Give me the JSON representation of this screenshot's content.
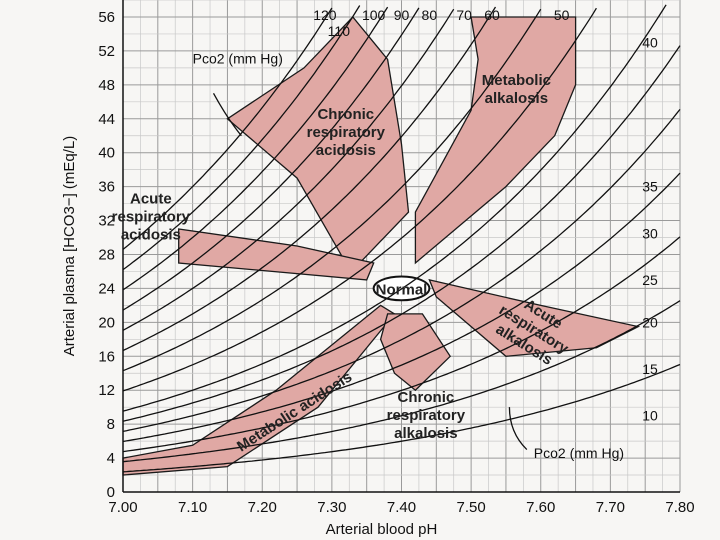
{
  "chart_data": {
    "type": "line",
    "title": "",
    "xlabel": "Arterial blood pH",
    "ylabel": "Arterial plasma [HCO3−] (mEq/L)",
    "xlim": [
      7.0,
      7.8
    ],
    "ylim": [
      0,
      58
    ],
    "x_ticks": [
      "7.00",
      "7.10",
      "7.20",
      "7.30",
      "7.40",
      "7.50",
      "7.60",
      "7.70",
      "7.80"
    ],
    "y_ticks": [
      "0",
      "4",
      "8",
      "12",
      "16",
      "20",
      "24",
      "28",
      "32",
      "36",
      "40",
      "44",
      "48",
      "52",
      "56"
    ],
    "grid": true,
    "isopleth_label_top": "Pco2 (mm Hg)",
    "isopleth_label_bottom": "Pco2 (mm Hg)",
    "isopleths_pco2_mmHg": [
      120,
      110,
      100,
      90,
      80,
      70,
      60,
      50,
      40,
      35,
      30,
      25,
      20,
      15,
      10
    ],
    "isopleth_labels_top": [
      {
        "text": "120",
        "pco2": 120
      },
      {
        "text": "110",
        "pco2": 110
      },
      {
        "text": "100",
        "pco2": 100
      },
      {
        "text": "90",
        "pco2": 90
      },
      {
        "text": "80",
        "pco2": 80
      },
      {
        "text": "70",
        "pco2": 70
      },
      {
        "text": "60",
        "pco2": 60
      },
      {
        "text": "50",
        "pco2": 50
      }
    ],
    "isopleth_labels_right": [
      {
        "text": "40",
        "pco2": 40
      },
      {
        "text": "35",
        "pco2": 35
      },
      {
        "text": "30",
        "pco2": 30
      },
      {
        "text": "25",
        "pco2": 25
      },
      {
        "text": "20",
        "pco2": 20
      },
      {
        "text": "15",
        "pco2": 15
      },
      {
        "text": "10",
        "pco2": 10
      }
    ],
    "regions": [
      {
        "name": "Normal",
        "label": "Normal",
        "ellipse": {
          "cx": 7.4,
          "cy": 24,
          "rx": 0.04,
          "ry": 1.4
        }
      },
      {
        "name": "Chronic respiratory acidosis",
        "label_lines": [
          "Chronic",
          "respiratory",
          "acidosis"
        ],
        "polygon": [
          [
            7.32,
            27
          ],
          [
            7.25,
            37
          ],
          [
            7.15,
            44
          ],
          [
            7.26,
            50
          ],
          [
            7.33,
            56
          ],
          [
            7.38,
            51
          ],
          [
            7.4,
            41
          ],
          [
            7.41,
            33
          ],
          [
            7.34,
            27
          ]
        ]
      },
      {
        "name": "Metabolic alkalosis",
        "label_lines": [
          "Metabolic",
          "alkalosis"
        ],
        "polygon": [
          [
            7.42,
            33
          ],
          [
            7.5,
            45
          ],
          [
            7.51,
            51
          ],
          [
            7.5,
            56
          ],
          [
            7.65,
            56
          ],
          [
            7.65,
            48
          ],
          [
            7.62,
            42
          ],
          [
            7.55,
            36
          ],
          [
            7.42,
            27
          ]
        ]
      },
      {
        "name": "Acute respiratory acidosis",
        "label_lines": [
          "Acute",
          "respiratory",
          "acidosis"
        ],
        "polygon": [
          [
            7.08,
            31
          ],
          [
            7.08,
            27
          ],
          [
            7.35,
            25
          ],
          [
            7.36,
            27
          ],
          [
            7.25,
            29
          ]
        ]
      },
      {
        "name": "Acute respiratory alkalosis",
        "label_lines": [
          "Acute",
          "respiratory",
          "alkalosis"
        ],
        "polygon": [
          [
            7.44,
            25
          ],
          [
            7.6,
            22
          ],
          [
            7.74,
            19.5
          ],
          [
            7.68,
            17
          ],
          [
            7.55,
            16
          ],
          [
            7.45,
            23
          ]
        ]
      },
      {
        "name": "Metabolic acidosis",
        "label_lines": [
          "Metabolic acidosis"
        ],
        "polygon": [
          [
            7.37,
            22
          ],
          [
            7.22,
            12
          ],
          [
            7.1,
            5.5
          ],
          [
            7.0,
            4
          ],
          [
            7.0,
            2
          ],
          [
            7.15,
            3
          ],
          [
            7.28,
            10
          ],
          [
            7.39,
            21
          ]
        ]
      },
      {
        "name": "Chronic respiratory alkalosis",
        "label_lines": [
          "Chronic",
          "respiratory",
          "alkalosis"
        ],
        "polygon": [
          [
            7.38,
            21
          ],
          [
            7.37,
            18
          ],
          [
            7.39,
            14
          ],
          [
            7.42,
            12
          ],
          [
            7.47,
            16
          ],
          [
            7.43,
            21
          ]
        ]
      }
    ]
  }
}
